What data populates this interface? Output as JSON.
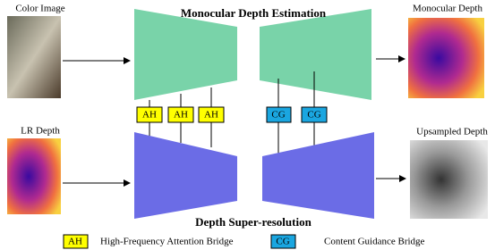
{
  "top": {
    "title": "Monocular Depth Estimation",
    "input_label": "Color Image",
    "output_label": "Monocular Depth"
  },
  "bottom": {
    "title": "Depth Super-resolution",
    "input_label": "LR Depth",
    "output_label": "Upsampled Depth"
  },
  "bridges": {
    "ah": [
      "AH",
      "AH",
      "AH"
    ],
    "cg": [
      "CG",
      "CG"
    ]
  },
  "legend": [
    {
      "tag": "AH",
      "text": "High-Frequency Attention Bridge"
    },
    {
      "tag": "CG",
      "text": "Content Guidance Bridge"
    }
  ]
}
